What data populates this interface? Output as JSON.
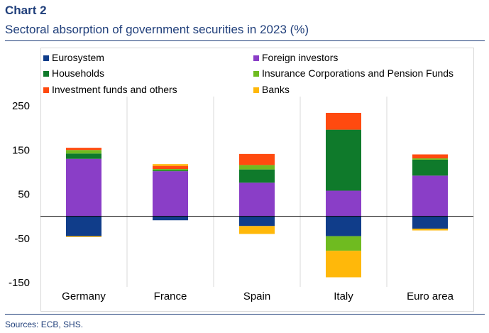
{
  "header": {
    "title": "Chart 2",
    "subtitle": "Sectoral absorption of government securities in 2023 (%)"
  },
  "footer": {
    "sources": "Sources: ECB, SHS."
  },
  "colors": {
    "eurosystem": "#103d8a",
    "foreign": "#8a3ec7",
    "households": "#0f7a2b",
    "insurance": "#6fbb20",
    "investment": "#ff4a0f",
    "banks": "#ffb80a"
  },
  "chart_data": {
    "type": "bar",
    "stacked": true,
    "title": "Sectoral absorption of government securities in 2023 (%)",
    "xlabel": "",
    "ylabel": "",
    "ylim": [
      -150,
      250
    ],
    "yticks": [
      250,
      150,
      50,
      -50,
      -150
    ],
    "ytick_labels": [
      "250",
      "150",
      "50",
      "-50",
      "-150"
    ],
    "categories": [
      "Germany",
      "France",
      "Spain",
      "Italy",
      "Euro area"
    ],
    "legend_position": "top",
    "series": [
      {
        "key": "eurosystem",
        "name": "Eurosystem",
        "values": [
          -45,
          -9,
          -22,
          -45,
          -28
        ]
      },
      {
        "key": "foreign",
        "name": "Foreign investors",
        "values": [
          130,
          102,
          76,
          58,
          92
        ]
      },
      {
        "key": "households",
        "name": "Households",
        "values": [
          12,
          2,
          30,
          138,
          36
        ]
      },
      {
        "key": "insurance",
        "name": "Insurance Corporations and Pension Funds",
        "values": [
          8,
          3,
          10,
          -33,
          3
        ]
      },
      {
        "key": "investment",
        "name": "Investment funds and others",
        "values": [
          5,
          7,
          25,
          38,
          9
        ]
      },
      {
        "key": "banks",
        "name": "Banks",
        "values": [
          -2,
          4,
          -18,
          -60,
          -4
        ]
      }
    ]
  }
}
